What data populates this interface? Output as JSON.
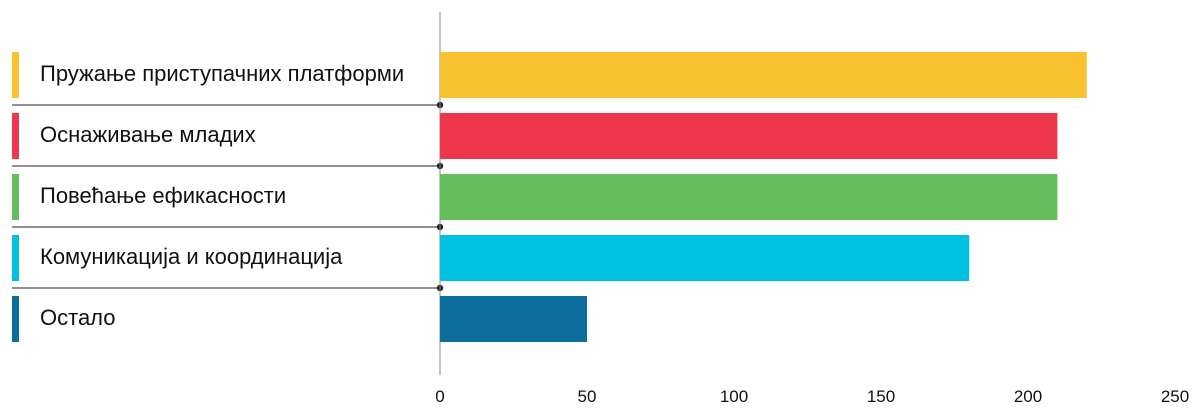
{
  "chart_data": {
    "type": "bar",
    "orientation": "horizontal",
    "categories": [
      "Пружање приступачних платформи",
      "Оснаживање младих",
      "Повећање ефикасности",
      "Комуникација и координација",
      "Остало"
    ],
    "values": [
      220,
      210,
      210,
      180,
      50
    ],
    "colors": [
      "#f7c12f",
      "#ee364d",
      "#63be5b",
      "#00c1e2",
      "#0a6d9c"
    ],
    "xlim": [
      0,
      250
    ],
    "xticks": [
      "0",
      "50",
      "100",
      "150",
      "200",
      "250"
    ],
    "title": "",
    "xlabel": "",
    "ylabel": "",
    "grid": false,
    "legend": "none"
  }
}
